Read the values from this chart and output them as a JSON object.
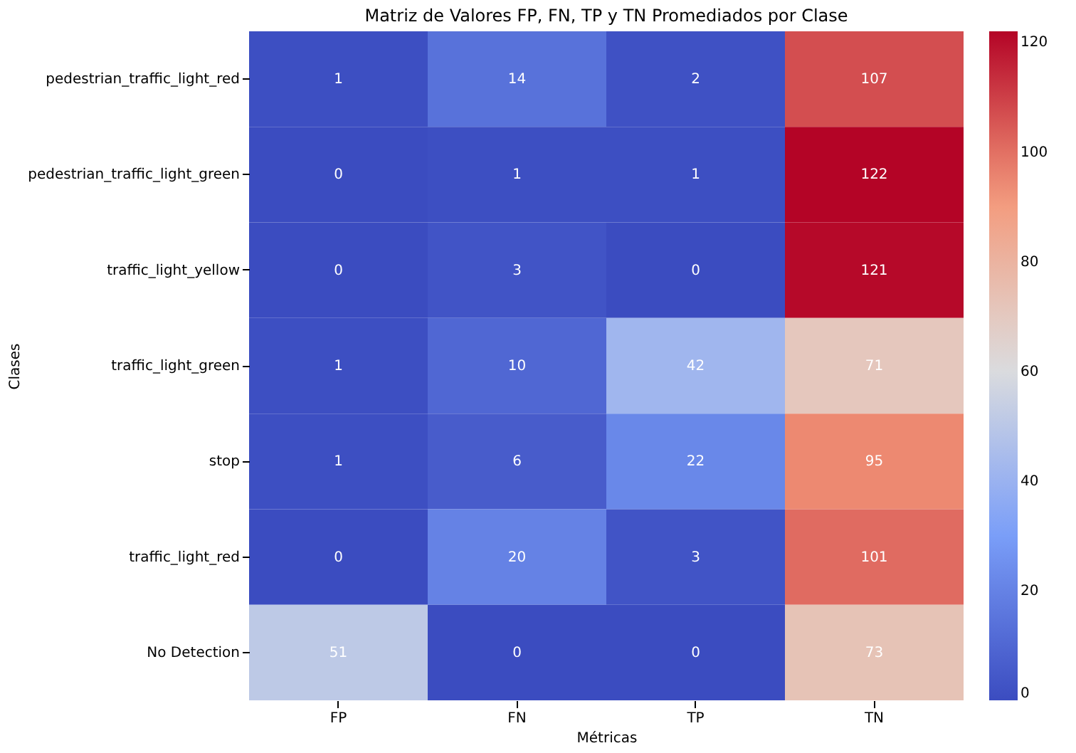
{
  "chart_data": {
    "type": "heatmap",
    "title": "Matriz de Valores FP, FN, TP y TN Promediados por Clase",
    "xlabel": "Métricas",
    "ylabel": "Clases",
    "categories": [
      "FP",
      "FN",
      "TP",
      "TN"
    ],
    "y_categories": [
      "pedestrian_traffic_light_red",
      "pedestrian_traffic_light_green",
      "traffic_light_yellow",
      "traffic_light_green",
      "stop",
      "traffic_light_red",
      "No Detection"
    ],
    "cells": [
      [
        1,
        14,
        2,
        107
      ],
      [
        0,
        1,
        1,
        122
      ],
      [
        0,
        3,
        0,
        121
      ],
      [
        1,
        10,
        42,
        71
      ],
      [
        1,
        6,
        22,
        95
      ],
      [
        0,
        20,
        3,
        101
      ],
      [
        51,
        0,
        0,
        73
      ]
    ],
    "data_labels": true,
    "clim": [
      0,
      122
    ],
    "cticks": [
      0,
      20,
      40,
      60,
      80,
      100,
      120
    ]
  }
}
